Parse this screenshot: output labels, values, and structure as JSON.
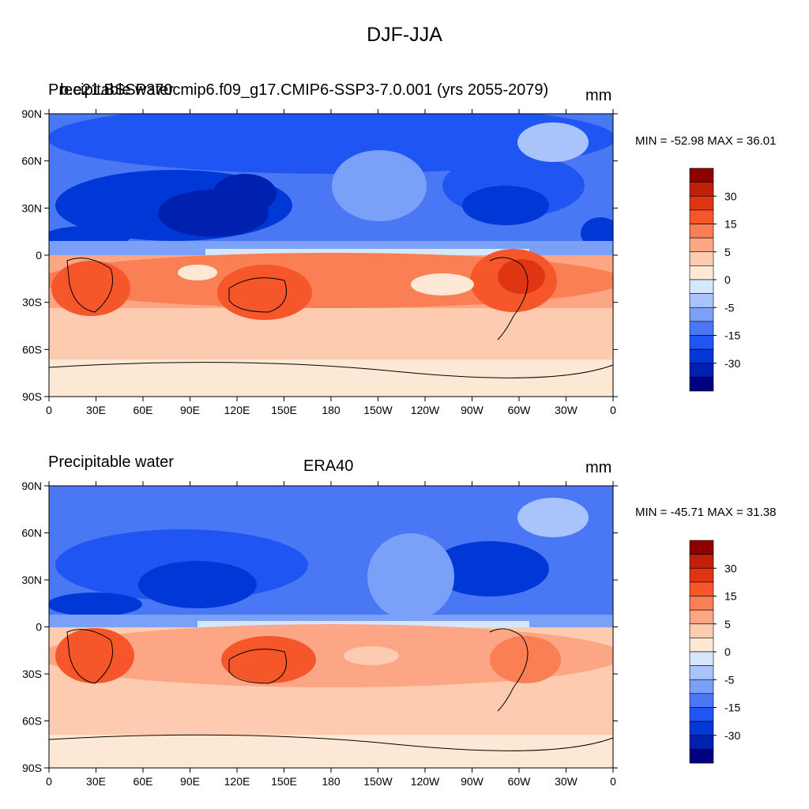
{
  "figure": {
    "title": "DJF-JJA"
  },
  "panels": [
    {
      "left_label": "Precipitable water",
      "center_label": "b.e21.BSSP370cmip6.f09_g17.CMIP6-SSP3-7.0.001 (yrs 2055-2079)",
      "units": "mm",
      "stats": "MIN = -52.98 MAX =  36.01"
    },
    {
      "left_label": "Precipitable water",
      "center_label": "ERA40",
      "units": "mm",
      "stats": "MIN = -45.71 MAX =  31.38"
    }
  ],
  "axes": {
    "lat_labels": [
      "90N",
      "60N",
      "30N",
      "0",
      "30S",
      "60S",
      "90S"
    ],
    "lon_labels": [
      "0",
      "30E",
      "60E",
      "90E",
      "120E",
      "150E",
      "180",
      "150W",
      "120W",
      "90W",
      "60W",
      "30W",
      "0"
    ]
  },
  "colorbar": {
    "levels": [
      -40,
      -35,
      -30,
      -25,
      -15,
      -10,
      -5,
      -2.5,
      0,
      2.5,
      5,
      10,
      15,
      25,
      30,
      35,
      40
    ],
    "colors": [
      "#000080",
      "#0020b0",
      "#0038d8",
      "#1f55f2",
      "#4a78f5",
      "#7aa0f8",
      "#a8c4fb",
      "#d6e7fd",
      "#fde8d6",
      "#fdcbb0",
      "#fca685",
      "#fb7f55",
      "#f6572a",
      "#e03512",
      "#c01f08",
      "#8c0000"
    ],
    "tick_labels": [
      "30",
      "15",
      "5",
      "0",
      "-5",
      "-15",
      "-30"
    ]
  }
}
